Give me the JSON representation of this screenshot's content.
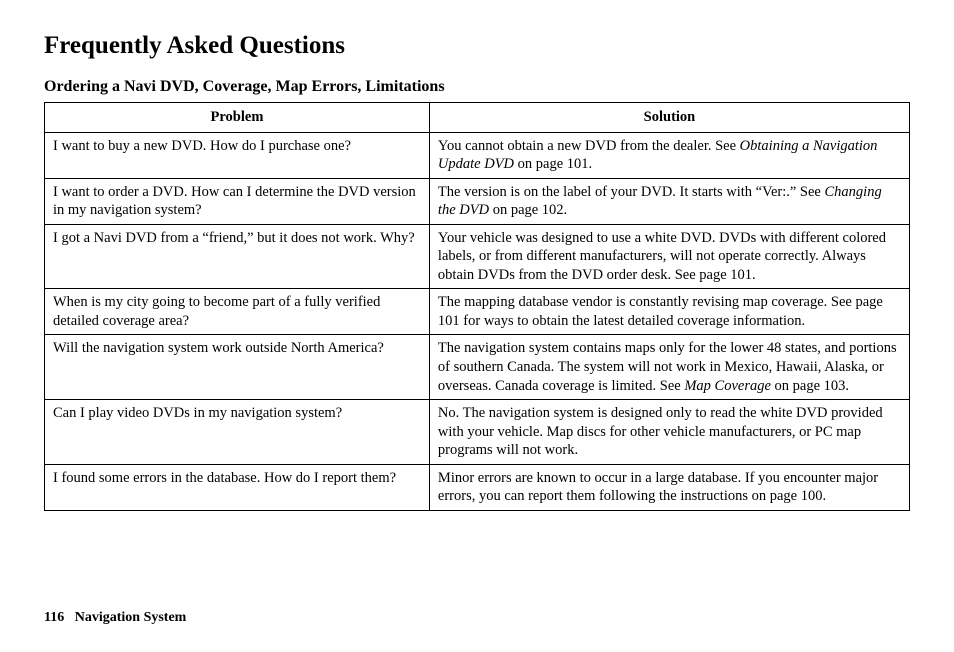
{
  "page_title": "Frequently Asked Questions",
  "section_title": "Ordering a Navi DVD, Coverage, Map Errors, Limitations",
  "headers": {
    "problem": "Problem",
    "solution": "Solution"
  },
  "rows": [
    {
      "problem": "I want to buy a new DVD. How do I purchase one?",
      "solution_pre": "You cannot obtain a new DVD from the dealer. See ",
      "solution_em": "Obtaining a Navigation Update DVD",
      "solution_post": " on page 101."
    },
    {
      "problem": "I want to order a DVD. How can I determine the DVD version in my navigation system?",
      "solution_pre": "The version is on the label of your DVD. It starts with “Ver:.” See ",
      "solution_em": "Changing the DVD",
      "solution_post": " on page 102."
    },
    {
      "problem": "I got a Navi DVD from a “friend,” but it does not work. Why?",
      "solution_pre": "Your vehicle was designed to use a white DVD. DVDs with different colored labels, or from different manufacturers, will not operate correctly. Always obtain DVDs from the DVD order desk. See page 101.",
      "solution_em": "",
      "solution_post": ""
    },
    {
      "problem": "When is my city going to become part of a fully verified detailed coverage area?",
      "solution_pre": "The mapping database vendor is constantly revising map coverage. See page 101 for ways to obtain the latest detailed coverage information.",
      "solution_em": "",
      "solution_post": ""
    },
    {
      "problem": "Will the navigation system work outside North America?",
      "solution_pre": "The navigation system contains maps only for the lower 48 states, and portions of southern Canada. The system will not work in Mexico, Hawaii, Alaska, or overseas. Canada coverage is limited. See ",
      "solution_em": "Map Coverage",
      "solution_post": " on page 103."
    },
    {
      "problem": "Can I play video DVDs in my navigation system?",
      "solution_pre": "No. The navigation system is designed only to read the white DVD provided with your vehicle. Map discs for other vehicle manufacturers, or PC map programs will not work.",
      "solution_em": "",
      "solution_post": ""
    },
    {
      "problem": "I found some errors in the database. How do I report them?",
      "solution_pre": "Minor errors are known to occur in a large database. If you encounter major errors, you can report them following the instructions on page 100.",
      "solution_em": "",
      "solution_post": ""
    }
  ],
  "footer": {
    "page_number": "116",
    "section_label": "Navigation System"
  }
}
